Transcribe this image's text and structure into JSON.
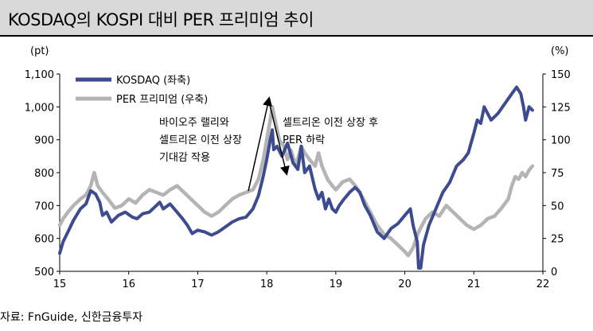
{
  "title": "KOSDAQ의 KOSPI 대비 PER 프리미엄 추이",
  "source": "자료: FnGuide, 신한금융투자",
  "colors": {
    "kosdaq": "#3d4b8f",
    "premium": "#b4b4b4",
    "axis": "#000000",
    "title_bg": "#d9d9d9"
  },
  "chart_data": {
    "type": "line",
    "title": "KOSDAQ의 KOSPI 대비 PER 프리미엄 추이",
    "left_unit": "(pt)",
    "right_unit": "(%)",
    "x_ticks": [
      "15",
      "16",
      "17",
      "18",
      "19",
      "20",
      "21",
      "22"
    ],
    "x_range": [
      15,
      22
    ],
    "ylim_left": [
      500,
      1100
    ],
    "ylim_right": [
      0,
      150
    ],
    "yticks_left": [
      "500",
      "600",
      "700",
      "800",
      "900",
      "1,000",
      "1,100"
    ],
    "yticks_right": [
      "0",
      "25",
      "50",
      "75",
      "100",
      "125",
      "150"
    ],
    "grid": false,
    "legend_position": "top-left",
    "series": [
      {
        "name": "KOSDAQ (좌축)",
        "axis": "left",
        "points": [
          [
            15.0,
            555
          ],
          [
            15.05,
            590
          ],
          [
            15.12,
            620
          ],
          [
            15.2,
            655
          ],
          [
            15.3,
            690
          ],
          [
            15.38,
            705
          ],
          [
            15.45,
            745
          ],
          [
            15.52,
            735
          ],
          [
            15.58,
            710
          ],
          [
            15.62,
            670
          ],
          [
            15.68,
            680
          ],
          [
            15.75,
            650
          ],
          [
            15.85,
            670
          ],
          [
            15.95,
            680
          ],
          [
            16.05,
            665
          ],
          [
            16.12,
            660
          ],
          [
            16.2,
            675
          ],
          [
            16.3,
            680
          ],
          [
            16.4,
            700
          ],
          [
            16.45,
            710
          ],
          [
            16.5,
            690
          ],
          [
            16.6,
            705
          ],
          [
            16.7,
            680
          ],
          [
            16.78,
            660
          ],
          [
            16.85,
            640
          ],
          [
            16.92,
            615
          ],
          [
            17.0,
            625
          ],
          [
            17.1,
            620
          ],
          [
            17.2,
            610
          ],
          [
            17.3,
            620
          ],
          [
            17.4,
            635
          ],
          [
            17.5,
            650
          ],
          [
            17.6,
            660
          ],
          [
            17.7,
            665
          ],
          [
            17.8,
            690
          ],
          [
            17.88,
            730
          ],
          [
            17.95,
            790
          ],
          [
            18.0,
            840
          ],
          [
            18.05,
            900
          ],
          [
            18.08,
            930
          ],
          [
            18.1,
            870
          ],
          [
            18.15,
            880
          ],
          [
            18.22,
            850
          ],
          [
            18.3,
            890
          ],
          [
            18.38,
            830
          ],
          [
            18.45,
            810
          ],
          [
            18.5,
            880
          ],
          [
            18.55,
            800
          ],
          [
            18.62,
            820
          ],
          [
            18.7,
            750
          ],
          [
            18.75,
            720
          ],
          [
            18.8,
            740
          ],
          [
            18.85,
            690
          ],
          [
            18.9,
            720
          ],
          [
            18.95,
            690
          ],
          [
            19.0,
            680
          ],
          [
            19.05,
            700
          ],
          [
            19.12,
            720
          ],
          [
            19.2,
            740
          ],
          [
            19.28,
            755
          ],
          [
            19.35,
            740
          ],
          [
            19.42,
            700
          ],
          [
            19.5,
            670
          ],
          [
            19.6,
            620
          ],
          [
            19.7,
            600
          ],
          [
            19.8,
            630
          ],
          [
            19.9,
            645
          ],
          [
            20.0,
            670
          ],
          [
            20.08,
            690
          ],
          [
            20.12,
            640
          ],
          [
            20.18,
            590
          ],
          [
            20.2,
            510
          ],
          [
            20.23,
            510
          ],
          [
            20.27,
            580
          ],
          [
            20.35,
            640
          ],
          [
            20.45,
            690
          ],
          [
            20.55,
            740
          ],
          [
            20.65,
            770
          ],
          [
            20.75,
            820
          ],
          [
            20.85,
            840
          ],
          [
            20.92,
            860
          ],
          [
            21.0,
            920
          ],
          [
            21.05,
            960
          ],
          [
            21.1,
            950
          ],
          [
            21.15,
            1000
          ],
          [
            21.25,
            960
          ],
          [
            21.35,
            980
          ],
          [
            21.45,
            1010
          ],
          [
            21.55,
            1040
          ],
          [
            21.62,
            1060
          ],
          [
            21.68,
            1040
          ],
          [
            21.72,
            1000
          ],
          [
            21.75,
            960
          ],
          [
            21.8,
            1000
          ],
          [
            21.85,
            990
          ]
        ]
      },
      {
        "name": "PER 프리미엄 (우축)",
        "axis": "right",
        "points": [
          [
            15.0,
            35
          ],
          [
            15.05,
            40
          ],
          [
            15.12,
            45
          ],
          [
            15.2,
            50
          ],
          [
            15.3,
            55
          ],
          [
            15.38,
            58
          ],
          [
            15.45,
            65
          ],
          [
            15.5,
            75
          ],
          [
            15.55,
            65
          ],
          [
            15.62,
            60
          ],
          [
            15.7,
            55
          ],
          [
            15.8,
            48
          ],
          [
            15.9,
            50
          ],
          [
            16.0,
            55
          ],
          [
            16.1,
            52
          ],
          [
            16.2,
            58
          ],
          [
            16.3,
            62
          ],
          [
            16.4,
            60
          ],
          [
            16.5,
            58
          ],
          [
            16.6,
            62
          ],
          [
            16.7,
            65
          ],
          [
            16.8,
            60
          ],
          [
            16.9,
            55
          ],
          [
            17.0,
            50
          ],
          [
            17.1,
            45
          ],
          [
            17.2,
            42
          ],
          [
            17.3,
            45
          ],
          [
            17.4,
            50
          ],
          [
            17.5,
            55
          ],
          [
            17.6,
            58
          ],
          [
            17.7,
            60
          ],
          [
            17.8,
            62
          ],
          [
            17.88,
            70
          ],
          [
            17.95,
            85
          ],
          [
            18.0,
            100
          ],
          [
            18.05,
            115
          ],
          [
            18.08,
            125
          ],
          [
            18.12,
            115
          ],
          [
            18.18,
            100
          ],
          [
            18.25,
            95
          ],
          [
            18.3,
            85
          ],
          [
            18.35,
            92
          ],
          [
            18.42,
            80
          ],
          [
            18.5,
            95
          ],
          [
            18.55,
            90
          ],
          [
            18.62,
            85
          ],
          [
            18.7,
            80
          ],
          [
            18.75,
            90
          ],
          [
            18.8,
            80
          ],
          [
            18.88,
            70
          ],
          [
            18.95,
            65
          ],
          [
            19.0,
            62
          ],
          [
            19.1,
            68
          ],
          [
            19.2,
            70
          ],
          [
            19.3,
            64
          ],
          [
            19.4,
            55
          ],
          [
            19.5,
            45
          ],
          [
            19.6,
            35
          ],
          [
            19.7,
            28
          ],
          [
            19.8,
            25
          ],
          [
            19.9,
            20
          ],
          [
            20.0,
            15
          ],
          [
            20.05,
            12
          ],
          [
            20.12,
            18
          ],
          [
            20.2,
            30
          ],
          [
            20.3,
            40
          ],
          [
            20.4,
            45
          ],
          [
            20.5,
            42
          ],
          [
            20.6,
            50
          ],
          [
            20.7,
            45
          ],
          [
            20.8,
            40
          ],
          [
            20.9,
            35
          ],
          [
            21.0,
            32
          ],
          [
            21.1,
            35
          ],
          [
            21.2,
            40
          ],
          [
            21.3,
            42
          ],
          [
            21.4,
            48
          ],
          [
            21.5,
            55
          ],
          [
            21.55,
            65
          ],
          [
            21.6,
            72
          ],
          [
            21.65,
            70
          ],
          [
            21.7,
            75
          ],
          [
            21.75,
            72
          ],
          [
            21.8,
            77
          ],
          [
            21.85,
            80
          ]
        ]
      }
    ],
    "annotations": [
      {
        "lines": [
          "바이오주 랠리와",
          "셀트리온 이전 상장",
          "기대감 작용"
        ]
      },
      {
        "lines": [
          "셀트리온 이전 상장 후",
          "PER 하락"
        ]
      }
    ]
  }
}
